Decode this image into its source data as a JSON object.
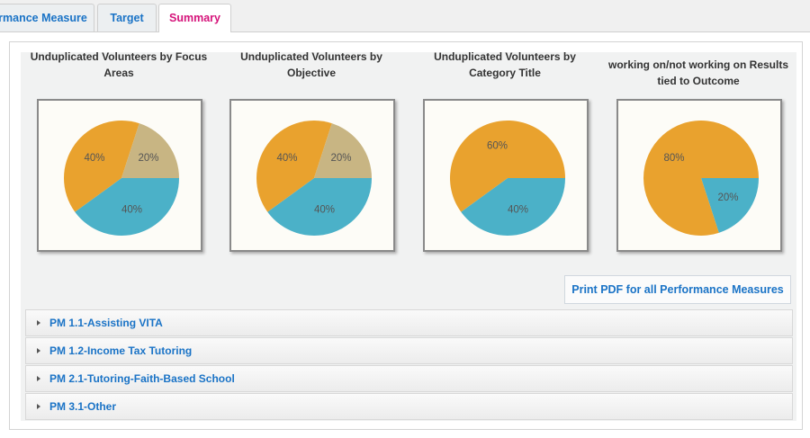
{
  "tabs": [
    "rmance Measure",
    "Target",
    "Summary"
  ],
  "chart_data": [
    {
      "type": "pie",
      "title": "Unduplicated Volunteers by Focus Areas",
      "values": [
        40,
        40,
        20
      ],
      "value_labels": [
        "40%",
        "40%",
        "20%"
      ],
      "colors": [
        "#4bb1c8",
        "#e9a22e",
        "#c8b583"
      ]
    },
    {
      "type": "pie",
      "title": "Unduplicated Volunteers by Objective",
      "values": [
        40,
        40,
        20
      ],
      "value_labels": [
        "40%",
        "40%",
        "20%"
      ],
      "colors": [
        "#4bb1c8",
        "#e9a22e",
        "#c8b583"
      ]
    },
    {
      "type": "pie",
      "title": "Unduplicated Volunteers by Category Title",
      "values": [
        40,
        60
      ],
      "value_labels": [
        "40%",
        "60%"
      ],
      "colors": [
        "#4bb1c8",
        "#e9a22e"
      ]
    },
    {
      "type": "pie",
      "title": "working on/not working on Results tied to Outcome",
      "values": [
        20,
        80
      ],
      "value_labels": [
        "20%",
        "80%"
      ],
      "colors": [
        "#4bb1c8",
        "#e9a22e"
      ]
    }
  ],
  "button": "Print PDF for all Performance Measures",
  "accordion": [
    "PM 1.1-Assisting VITA",
    "PM 1.2-Income Tax Tutoring",
    "PM 2.1-Tutoring-Faith-Based School",
    "PM 3.1-Other"
  ]
}
